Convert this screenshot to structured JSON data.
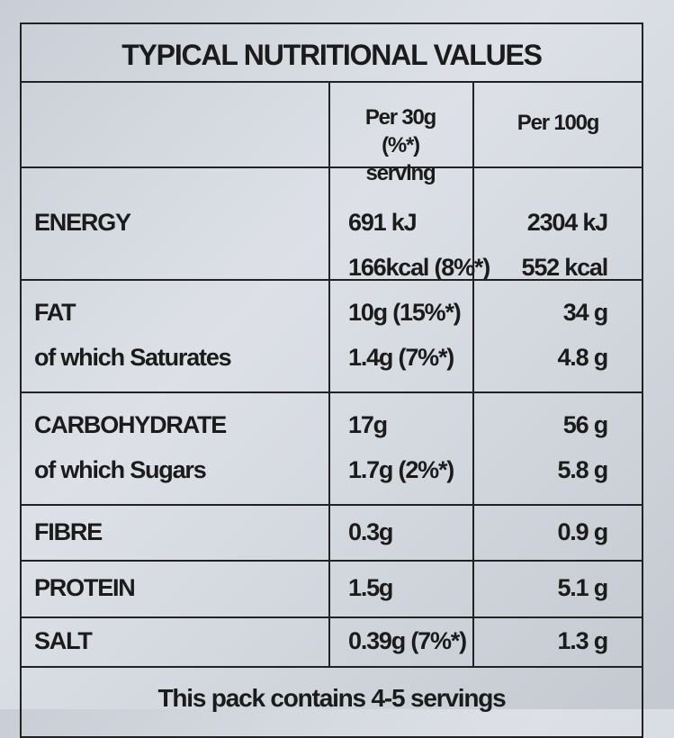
{
  "title": "TYPICAL NUTRITIONAL VALUES",
  "columns": [
    "Per 30g (%*) serving",
    "Per 100g"
  ],
  "rows": [
    {
      "label": [
        "ENERGY"
      ],
      "serving": [
        "691 kJ",
        "166kcal (8%*)"
      ],
      "per100g": [
        "2304 kJ",
        "552 kcal"
      ]
    },
    {
      "label": [
        "FAT",
        "of which Saturates"
      ],
      "serving": [
        "10g (15%*)",
        "1.4g (7%*)"
      ],
      "per100g": [
        "34 g",
        "4.8 g"
      ]
    },
    {
      "label": [
        "CARBOHYDRATE",
        "of which Sugars"
      ],
      "serving": [
        "17g",
        "1.7g (2%*)"
      ],
      "per100g": [
        "56 g",
        "5.8 g"
      ]
    },
    {
      "label": [
        "FIBRE"
      ],
      "serving": [
        "0.3g"
      ],
      "per100g": [
        "0.9 g"
      ]
    },
    {
      "label": [
        "PROTEIN"
      ],
      "serving": [
        "1.5g"
      ],
      "per100g": [
        "5.1 g"
      ]
    },
    {
      "label": [
        "SALT"
      ],
      "serving": [
        "0.39g (7%*)"
      ],
      "per100g": [
        "1.3 g"
      ]
    }
  ],
  "footer": "This pack contains 4-5 servings"
}
